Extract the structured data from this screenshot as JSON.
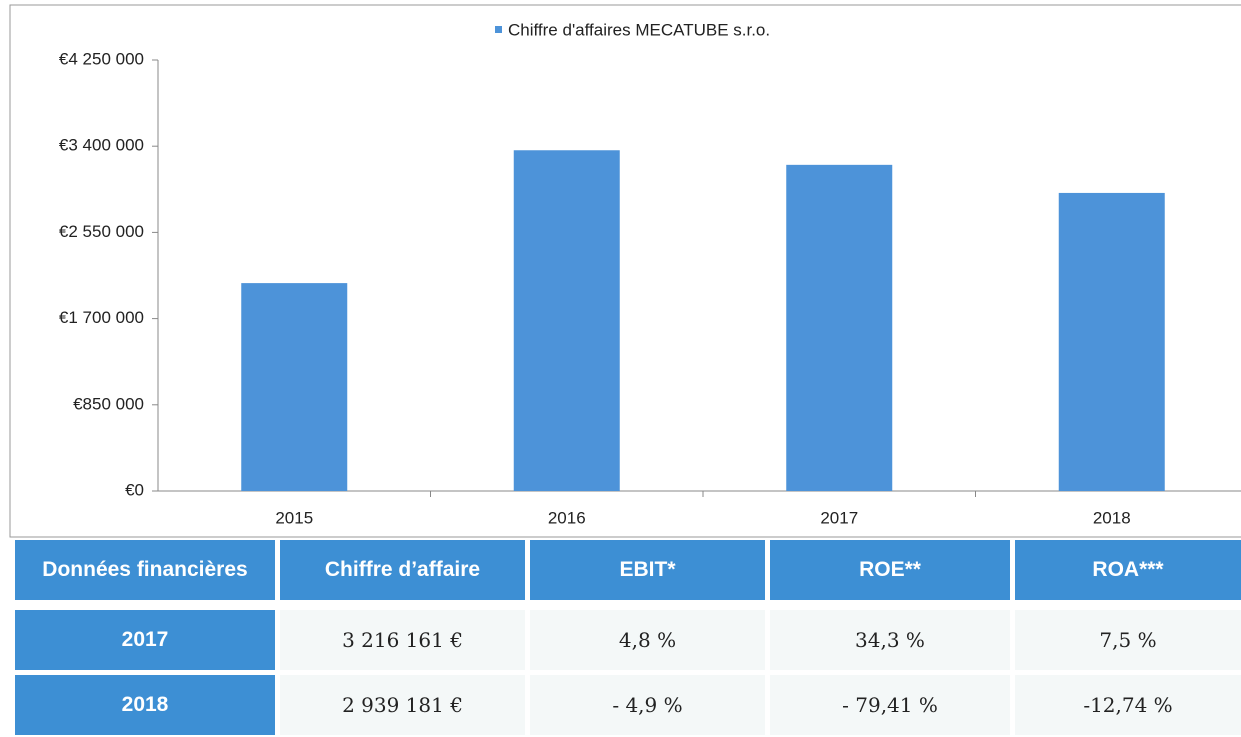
{
  "chart_data": {
    "type": "bar",
    "categories": [
      "2015",
      "2016",
      "2017",
      "2018"
    ],
    "series": [
      {
        "name": "Chiffre d'affaires MECATUBE s.r.o.",
        "color": "#4d93d9",
        "values": [
          2050000,
          3360000,
          3216161,
          2939181
        ]
      }
    ],
    "ylim": [
      0,
      4250000
    ],
    "yticks": [
      {
        "value": 0,
        "label": "€0"
      },
      {
        "value": 850000,
        "label": "€850 000"
      },
      {
        "value": 1700000,
        "label": "€1 700 000"
      },
      {
        "value": 2550000,
        "label": "€2 550 000"
      },
      {
        "value": 3400000,
        "label": "€3 400 000"
      },
      {
        "value": 4250000,
        "label": "€4 250 000"
      }
    ],
    "grid": false,
    "legend": "top"
  },
  "table": {
    "header": [
      "Données financières",
      "Chiffre d’affaire",
      "EBIT*",
      "ROE**",
      "ROA***"
    ],
    "rows": [
      [
        "2017",
        "3 216 161 €",
        "4,8 %",
        "34,3 %",
        "7,5 %"
      ],
      [
        "2018",
        "2 939 181 €",
        "- 4,9 %",
        "- 79,41 %",
        "-12,74 %"
      ]
    ]
  }
}
